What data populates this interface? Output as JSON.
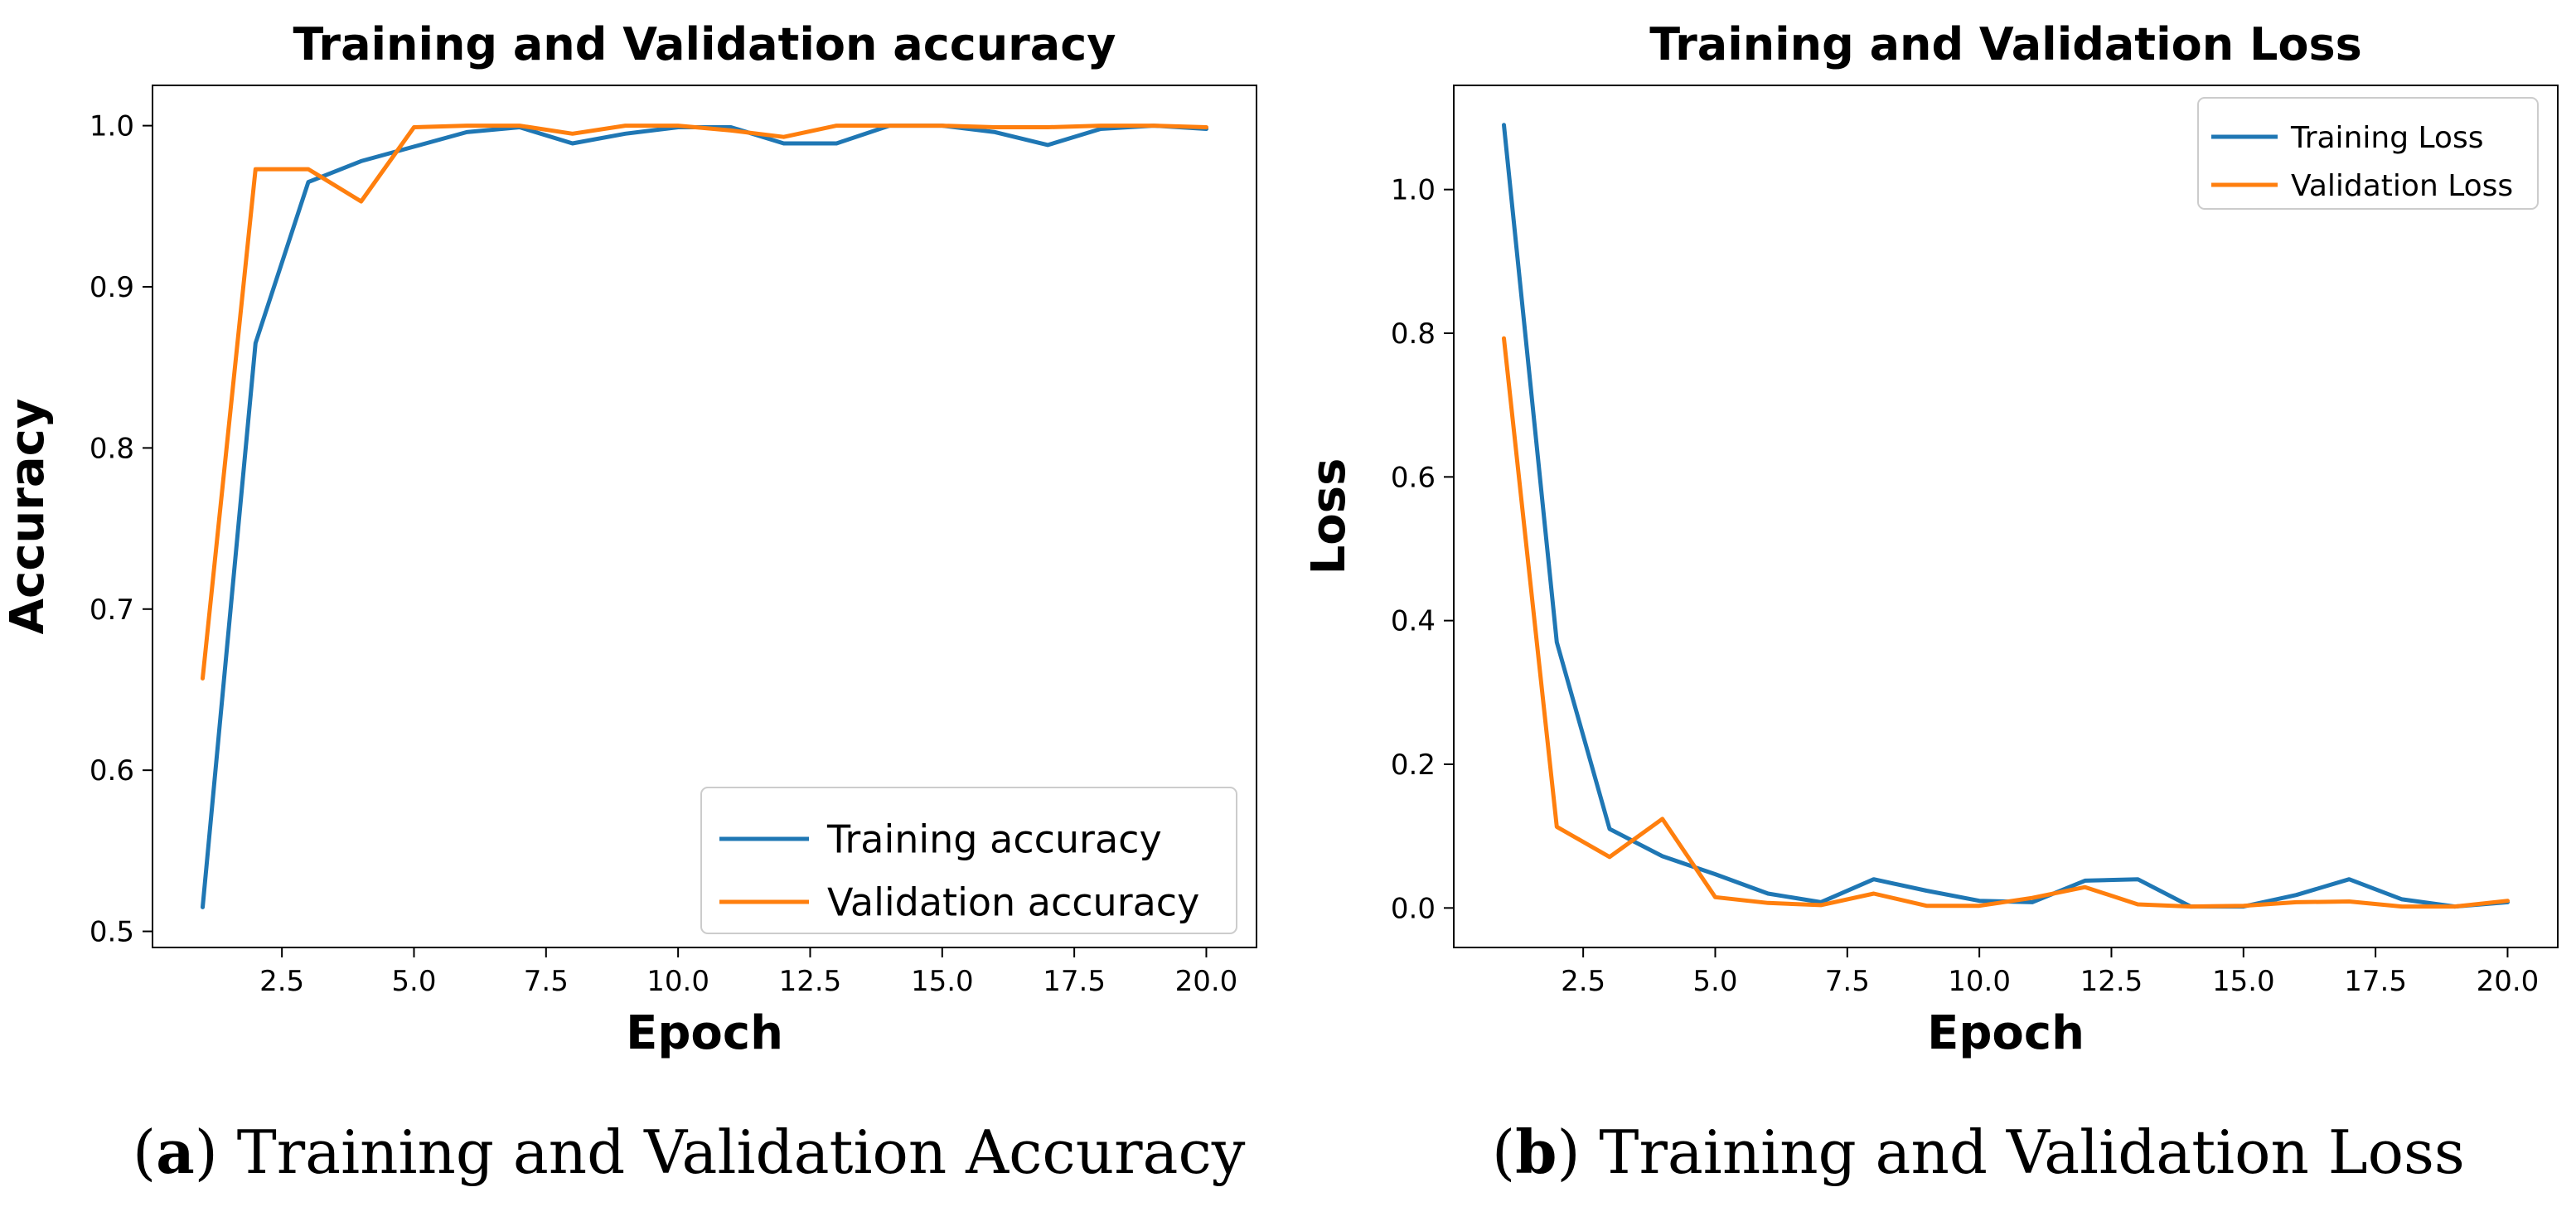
{
  "figure": {
    "captions": [
      {
        "letter": "a",
        "text": " Training and Validation Accuracy"
      },
      {
        "letter": "b",
        "text": " Training and Validation Loss"
      }
    ]
  },
  "colors": {
    "training": "#1f77b4",
    "validation": "#ff7f0e"
  },
  "chart_data": [
    {
      "type": "line",
      "title": "Training and Validation accuracy",
      "xlabel": "Epoch",
      "ylabel": "Accuracy",
      "xlim": [
        0.05,
        20.95
      ],
      "ylim": [
        0.49,
        1.025
      ],
      "xticks": [
        2.5,
        5.0,
        7.5,
        10.0,
        12.5,
        15.0,
        17.5,
        20.0
      ],
      "xtick_labels": [
        "2.5",
        "5.0",
        "7.5",
        "10.0",
        "12.5",
        "15.0",
        "17.5",
        "20.0"
      ],
      "yticks": [
        0.5,
        0.6,
        0.7,
        0.8,
        0.9,
        1.0
      ],
      "ytick_labels": [
        "0.5",
        "0.6",
        "0.7",
        "0.8",
        "0.9",
        "1.0"
      ],
      "legend_position": "lower-right",
      "grid": false,
      "x": [
        1,
        2,
        3,
        4,
        5,
        6,
        7,
        8,
        9,
        10,
        11,
        12,
        13,
        14,
        15,
        16,
        17,
        18,
        19,
        20
      ],
      "series": [
        {
          "name": "Training accuracy",
          "color": "#1f77b4",
          "values": [
            0.515,
            0.865,
            0.965,
            0.978,
            0.987,
            0.996,
            0.999,
            0.989,
            0.995,
            0.999,
            0.999,
            0.989,
            0.989,
            1.0,
            1.0,
            0.996,
            0.988,
            0.998,
            1.0,
            0.998
          ]
        },
        {
          "name": "Validation accuracy",
          "color": "#ff7f0e",
          "values": [
            0.657,
            0.973,
            0.973,
            0.953,
            0.999,
            1.0,
            1.0,
            0.995,
            1.0,
            1.0,
            0.997,
            0.993,
            1.0,
            1.0,
            1.0,
            0.999,
            0.999,
            1.0,
            1.0,
            0.999
          ]
        }
      ]
    },
    {
      "type": "line",
      "title": "Training and Validation Loss",
      "xlabel": "Epoch",
      "ylabel": "Loss",
      "xlim": [
        0.05,
        20.95
      ],
      "ylim": [
        -0.055,
        1.145
      ],
      "xticks": [
        2.5,
        5.0,
        7.5,
        10.0,
        12.5,
        15.0,
        17.5,
        20.0
      ],
      "xtick_labels": [
        "2.5",
        "5.0",
        "7.5",
        "10.0",
        "12.5",
        "15.0",
        "17.5",
        "20.0"
      ],
      "yticks": [
        0.0,
        0.2,
        0.4,
        0.6,
        0.8,
        1.0
      ],
      "ytick_labels": [
        "0.0",
        "0.2",
        "0.4",
        "0.6",
        "0.8",
        "1.0"
      ],
      "legend_position": "upper-right",
      "grid": false,
      "x": [
        1,
        2,
        3,
        4,
        5,
        6,
        7,
        8,
        9,
        10,
        11,
        12,
        13,
        14,
        15,
        16,
        17,
        18,
        19,
        20
      ],
      "series": [
        {
          "name": "Training Loss",
          "color": "#1f77b4",
          "values": [
            1.09,
            0.37,
            0.11,
            0.072,
            0.047,
            0.02,
            0.008,
            0.04,
            0.024,
            0.01,
            0.008,
            0.038,
            0.04,
            0.002,
            0.002,
            0.018,
            0.04,
            0.012,
            0.002,
            0.008
          ]
        },
        {
          "name": "Validation Loss",
          "color": "#ff7f0e",
          "values": [
            0.793,
            0.113,
            0.071,
            0.124,
            0.015,
            0.007,
            0.004,
            0.02,
            0.003,
            0.003,
            0.014,
            0.029,
            0.005,
            0.002,
            0.003,
            0.008,
            0.009,
            0.002,
            0.002,
            0.01
          ]
        }
      ]
    }
  ]
}
